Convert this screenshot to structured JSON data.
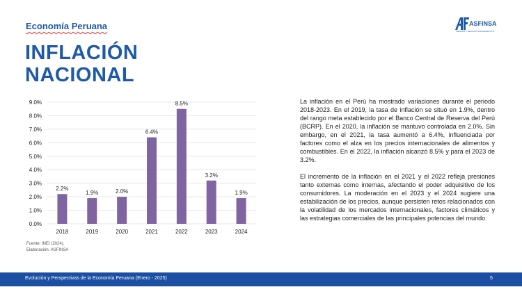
{
  "header": {
    "section": "Economía Peruana",
    "title_line1": "INFLACIÓN",
    "title_line2": "NACIONAL"
  },
  "logo": {
    "name": "ASFINSA",
    "subtitle": "ASESORÍA Y NEGOCIOS FINANCIEROS S.A."
  },
  "chart_data": {
    "type": "bar",
    "title": "",
    "xlabel": "",
    "ylabel": "",
    "categories": [
      "2018",
      "2019",
      "2020",
      "2021",
      "2022",
      "2023",
      "2024"
    ],
    "values": [
      2.2,
      1.9,
      2.0,
      6.4,
      8.5,
      3.2,
      1.9
    ],
    "data_labels": [
      "2.2%",
      "1.9%",
      "2.0%",
      "6.4%",
      "8.5%",
      "3.2%",
      "1.9%"
    ],
    "yticks": [
      "0.0%",
      "1.0%",
      "2.0%",
      "3.0%",
      "4.0%",
      "5.0%",
      "6.0%",
      "7.0%",
      "8.0%",
      "9.0%"
    ],
    "ylim": [
      0,
      9
    ],
    "grid": true,
    "color": "#8064a2"
  },
  "source": {
    "line1": "Fuente: INEI (2024).",
    "line2": "Elaboración: ASFINSA"
  },
  "text": {
    "paragraph1": "La inflación en el Perú ha mostrado variaciones durante el periodo 2018-2023. En el 2019, la tasa de inflación se situó en 1.9%, dentro del rango meta establecido por el Banco Central de Reserva del Perú (BCRP). En el 2020, la inflación se mantuvo controlada en 2.0%. Sin embargo, en el 2021, la tasa aumentó a 6.4%, influenciada por factores como el alza en los precios internacionales de alimentos y combustibles. En el 2022, la inflación alcanzó 8.5% y para el 2023 de 3.2%.",
    "paragraph2": "El incremento de la inflación en el 2021 y el 2022 refleja presiones tanto externas como internas, afectando el poder adquisitivo de los consumidores. La moderación en el 2023 y el 2024 sugiere una estabilización de los precios, aunque persisten retos relacionados con la volatilidad de los mercados internacionales, factores climáticos y las estrategias comerciales de las principales potencias del mundo."
  },
  "footer": {
    "text": "Evolución y Perspectivas de la Economía Peruana (Enero - 2025)",
    "page": "5"
  }
}
